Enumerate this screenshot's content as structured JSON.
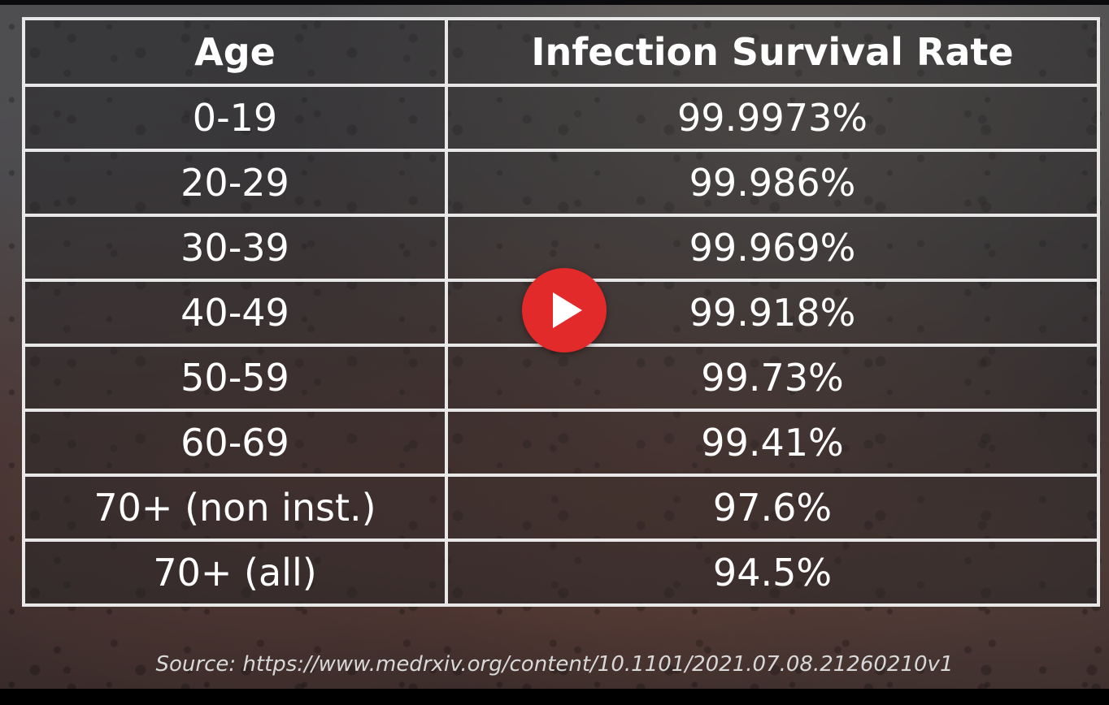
{
  "table": {
    "headers": [
      "Age",
      "Infection Survival Rate"
    ],
    "rows": [
      {
        "age": "0-19",
        "rate": "99.9973%"
      },
      {
        "age": "20-29",
        "rate": "99.986%"
      },
      {
        "age": "30-39",
        "rate": "99.969%"
      },
      {
        "age": "40-49",
        "rate": "99.918%"
      },
      {
        "age": "50-59",
        "rate": "99.73%"
      },
      {
        "age": "60-69",
        "rate": "99.41%"
      },
      {
        "age": "70+ (non inst.)",
        "rate": "97.6%"
      },
      {
        "age": "70+ (all)",
        "rate": "94.5%"
      }
    ]
  },
  "source": "Source: https://www.medrxiv.org/content/10.1101/2021.07.08.21260210v1",
  "player": {
    "play_icon": "play-icon",
    "accent_color": "#e32a2a"
  }
}
